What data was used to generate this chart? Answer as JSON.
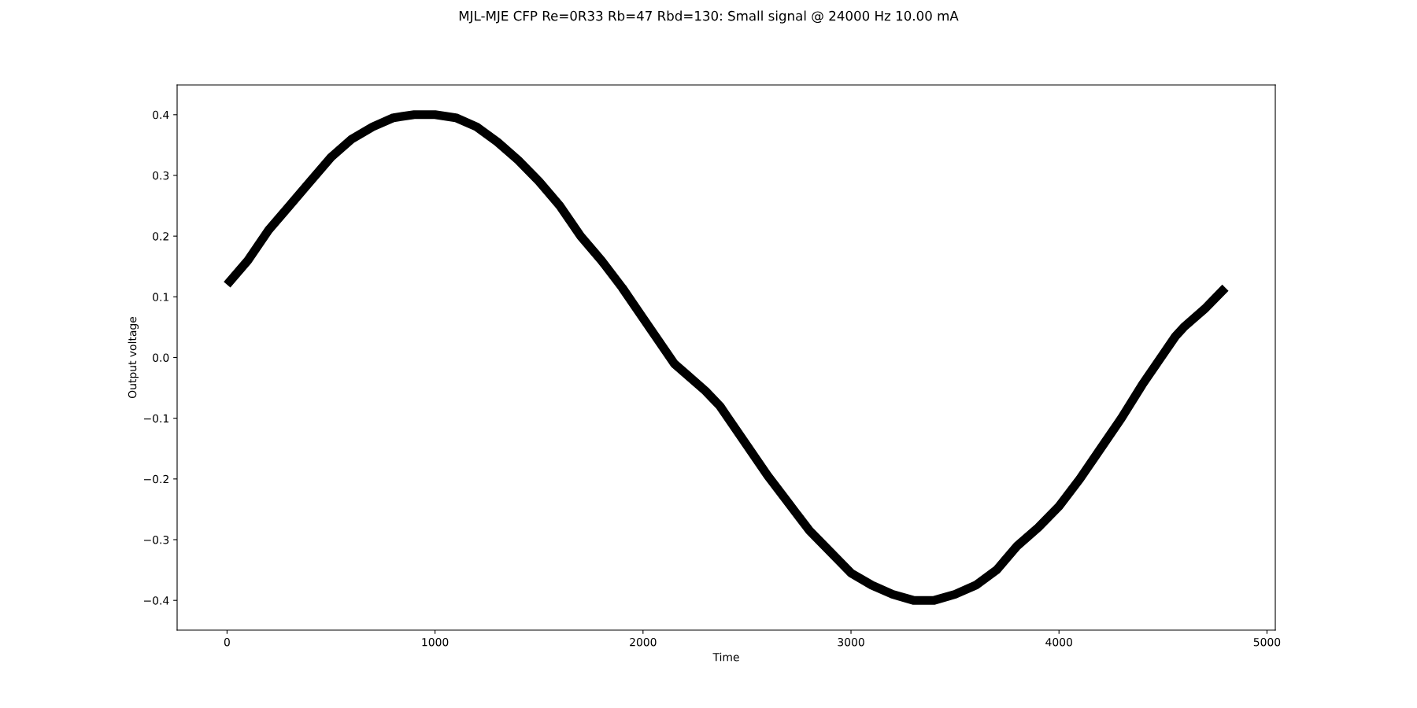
{
  "chart_data": {
    "type": "line",
    "title": "MJL-MJE CFP Re=0R33 Rb=47 Rbd=130: Small signal @ 24000 Hz 10.00 mA",
    "xlabel": "Time",
    "ylabel": "Output voltage",
    "x": [
      0,
      100,
      200,
      300,
      400,
      500,
      600,
      700,
      800,
      900,
      1000,
      1100,
      1200,
      1300,
      1400,
      1500,
      1600,
      1700,
      1800,
      1900,
      2000,
      2100,
      2150,
      2200,
      2300,
      2370,
      2400,
      2500,
      2600,
      2700,
      2800,
      2900,
      3000,
      3100,
      3200,
      3300,
      3400,
      3500,
      3600,
      3700,
      3800,
      3900,
      4000,
      4100,
      4200,
      4300,
      4400,
      4500,
      4560,
      4600,
      4700,
      4800
    ],
    "series": [
      {
        "color": "#000000",
        "values": [
          0.12,
          0.16,
          0.21,
          0.25,
          0.29,
          0.33,
          0.36,
          0.38,
          0.395,
          0.4,
          0.4,
          0.395,
          0.38,
          0.355,
          0.325,
          0.29,
          0.25,
          0.2,
          0.16,
          0.115,
          0.065,
          0.015,
          -0.01,
          -0.025,
          -0.055,
          -0.08,
          -0.095,
          -0.145,
          -0.195,
          -0.24,
          -0.285,
          -0.32,
          -0.355,
          -0.375,
          -0.39,
          -0.4,
          -0.4,
          -0.39,
          -0.375,
          -0.35,
          -0.31,
          -0.28,
          -0.245,
          -0.2,
          -0.15,
          -0.1,
          -0.045,
          0.005,
          0.035,
          0.05,
          0.08,
          0.115
        ]
      }
    ],
    "xlim": [
      -240,
      5040
    ],
    "xticks": [
      0,
      1000,
      2000,
      3000,
      4000,
      5000
    ],
    "ylim": [
      -0.449,
      0.449
    ],
    "yticks": [
      {
        "value": -0.4,
        "label": "−0.4"
      },
      {
        "value": -0.3,
        "label": "−0.3"
      },
      {
        "value": -0.2,
        "label": "−0.2"
      },
      {
        "value": -0.1,
        "label": "−0.1"
      },
      {
        "value": 0,
        "label": "0.0"
      },
      0.1,
      0.2,
      0.3,
      0.4
    ],
    "grid": false,
    "legend": false,
    "marker": "none",
    "line_style": "solid"
  }
}
